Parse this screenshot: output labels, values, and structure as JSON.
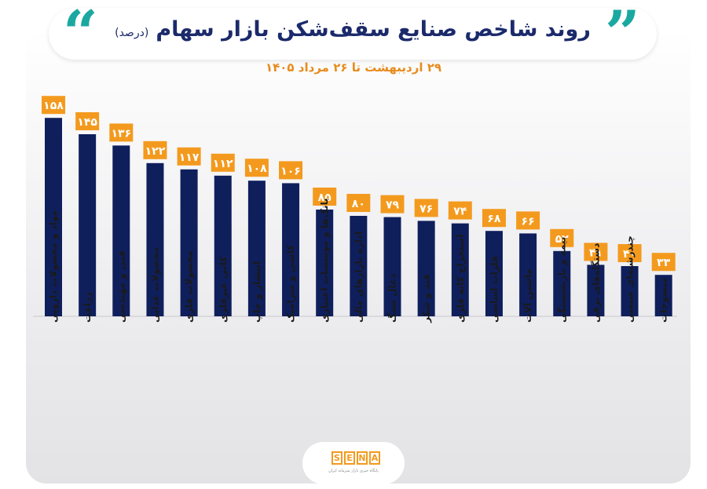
{
  "header": {
    "title": "روند شاخص صنایع سقف‌شکن بازار سهام",
    "unit": "(درصد)",
    "subtitle": "۲۹ اردیبهشت تا ۲۶ مرداد ۱۴۰۵"
  },
  "logo": {
    "letters": [
      "S",
      "E",
      "N",
      "A"
    ],
    "tagline": "پایگاه خبری بازار سرمایه ایران"
  },
  "colors": {
    "bar": "#0f1f5c",
    "label_bg": "#f39a1e",
    "label_text": "#ffffff",
    "accent": "#1ba8a0"
  },
  "chart_data": {
    "type": "bar",
    "title": "روند شاخص صنایع سقف‌شکن بازار سهام",
    "ylabel": "",
    "xlabel": "",
    "ylim": [
      0,
      158
    ],
    "grid": false,
    "categories": [
      "مواد و محصولات دارویی",
      "زراعت",
      "فنی و مهندسی",
      "محصولات غذایی",
      "محصولات فلزی",
      "کانی غیرفلزی",
      "انتشار و چاپ",
      "کاشی و سرامیک",
      "بانک‌ها و موسسات اعتباری",
      "اداره بازارهای مالی",
      "ذغال سنگ",
      "قند و شکر",
      "استخراج کانه فلزی",
      "فلزات اساسی",
      "ماشین آلات",
      "بیمه و بازنشستگی",
      "دستگاه‌های برقی",
      "چندرشته‌ای صنعتی",
      "منسوجات"
    ],
    "values": [
      158,
      145,
      136,
      122,
      117,
      112,
      108,
      106,
      85,
      80,
      79,
      76,
      74,
      68,
      66,
      52,
      41,
      40,
      33
    ],
    "value_labels": [
      "۱۵۸",
      "۱۴۵",
      "۱۳۶",
      "۱۲۲",
      "۱۱۷",
      "۱۱۲",
      "۱۰۸",
      "۱۰۶",
      "۸۵",
      "۸۰",
      "۷۹",
      "۷۶",
      "۷۴",
      "۶۸",
      "۶۶",
      "۵۲",
      "۴۱",
      "۴۰",
      "۳۳"
    ]
  }
}
